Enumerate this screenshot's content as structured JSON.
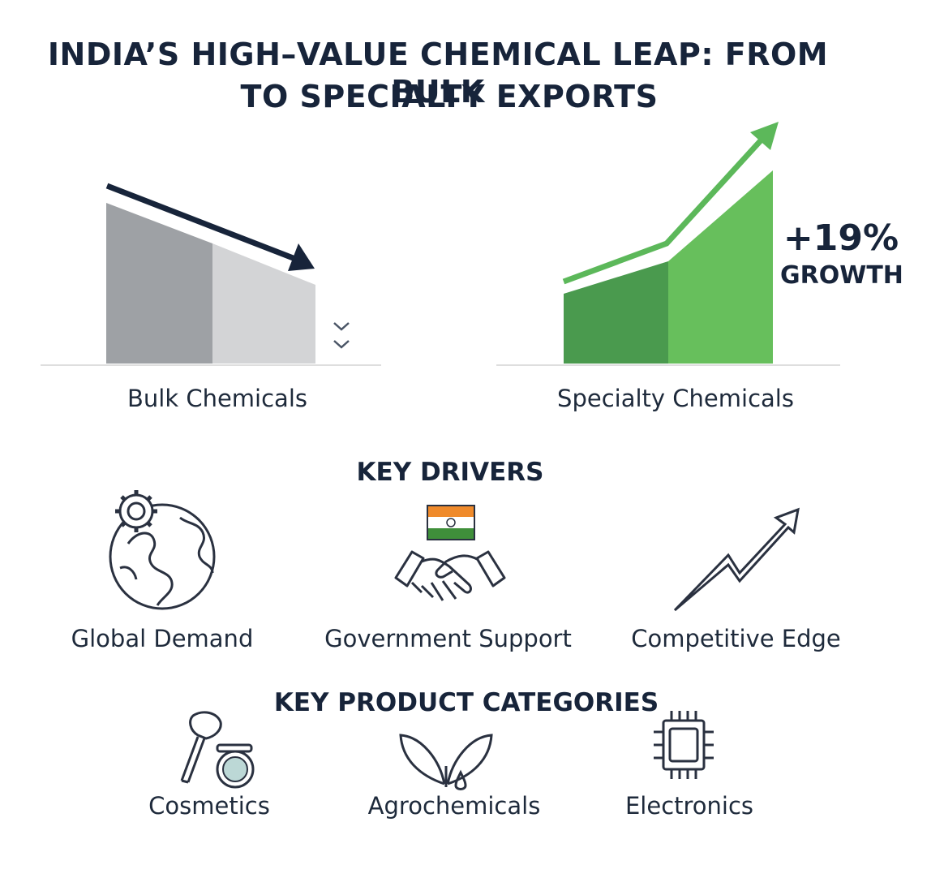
{
  "title": {
    "line1": "INDIA’S HIGH–VALUE CHEMICAL LEAP: FROM BULK",
    "line2": "TO SPECIALTY EXPORTS"
  },
  "bulk": {
    "label": "Bulk Chemicals",
    "trend": "down",
    "colors": {
      "dark": "#9ea1a5",
      "light": "#d3d4d6",
      "arrow": "#17243a"
    }
  },
  "specialty": {
    "label": "Specialty Chemicals",
    "trend": "up",
    "growth_value": "+19%",
    "growth_label": "GROWTH",
    "colors": {
      "dark": "#4a9a4e",
      "light": "#67bf5c"
    }
  },
  "drivers": {
    "heading": "KEY DRIVERS",
    "items": [
      {
        "label": "Global Demand",
        "icon": "globe-gear-icon"
      },
      {
        "label": "Government Support",
        "icon": "handshake-india-flag-icon"
      },
      {
        "label": "Competitive Edge",
        "icon": "zigzag-up-arrow-icon"
      }
    ]
  },
  "categories": {
    "heading": "KEY PRODUCT CATEGORIES",
    "items": [
      {
        "label": "Cosmetics",
        "icon": "makeup-brush-compact-icon"
      },
      {
        "label": "Agrochemicals",
        "icon": "leaves-droplet-icon"
      },
      {
        "label": "Electronics",
        "icon": "microchip-icon"
      }
    ]
  }
}
